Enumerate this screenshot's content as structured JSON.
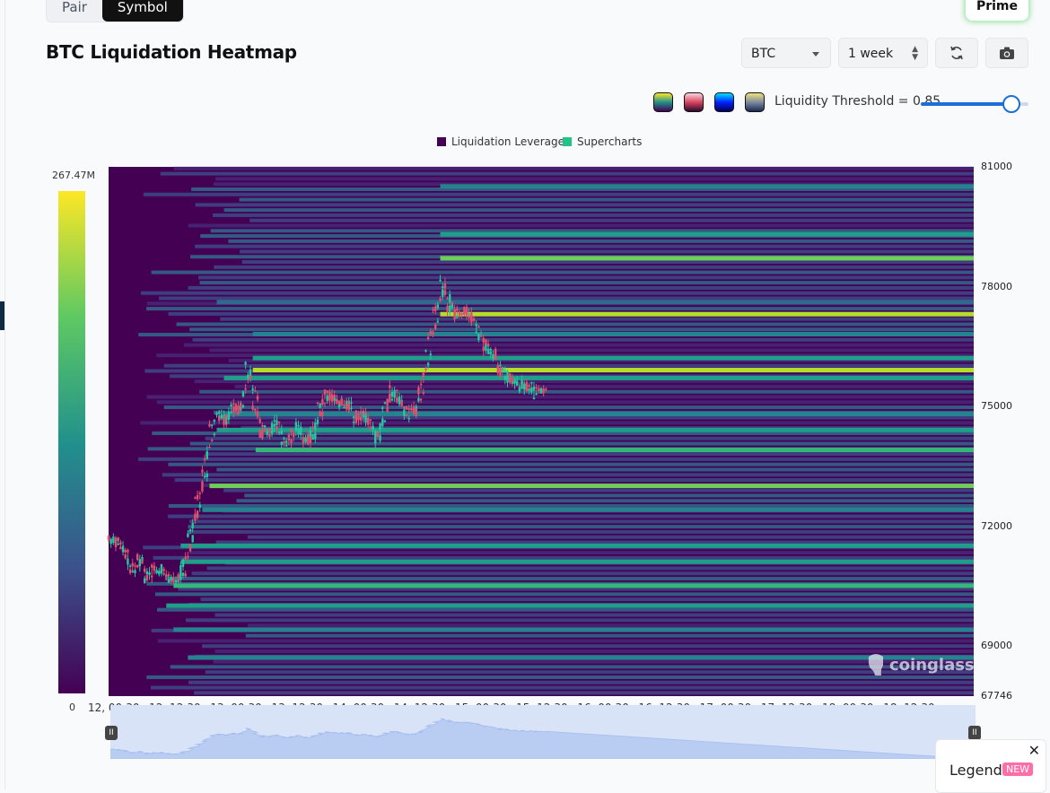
{
  "tabs": {
    "pair": "Pair",
    "symbol": "Symbol"
  },
  "prime_label": "Prime",
  "title": "BTC Liquidation Heatmap",
  "controls": {
    "coin": "BTC",
    "range": "1 week",
    "refresh_icon": "refresh-icon",
    "camera_icon": "camera-icon"
  },
  "palettes": [
    "viridis",
    "magma",
    "jet",
    "cividis"
  ],
  "threshold": {
    "label": "Liquidity Threshold = 0.85",
    "value": 0.85
  },
  "colorbar": {
    "max_label": "267.47M",
    "min_label": "0"
  },
  "watermark": "coinglass",
  "legend_button": {
    "label": "Legend",
    "badge": "NEW"
  },
  "chart_data": {
    "type": "heatmap",
    "legend": [
      {
        "name": "Liquidation Leverage",
        "color": "#440154"
      },
      {
        "name": "Supercharts",
        "color": "#22c387"
      }
    ],
    "x_ticks": [
      "12, 00:30",
      "12, 12:30",
      "13, 00:30",
      "13, 12:30",
      "14, 00:30",
      "14, 12:30",
      "15, 00:30",
      "15, 12:30",
      "16, 00:30",
      "16, 12:30",
      "17, 00:30",
      "17, 12:30",
      "18, 00:30",
      "18, 12:30"
    ],
    "y_ticks": [
      81000,
      78000,
      75000,
      72000,
      69000,
      67746
    ],
    "ylim": [
      67746,
      81000
    ],
    "colorscale": {
      "min": 0,
      "max": 267.47,
      "unit": "M",
      "palette": "viridis"
    },
    "price_path": [
      [
        0,
        71650
      ],
      [
        0.5,
        71600
      ],
      [
        1,
        71300
      ],
      [
        1.5,
        70800
      ],
      [
        2,
        71200
      ],
      [
        2.5,
        70700
      ],
      [
        3,
        71000
      ],
      [
        3.5,
        70900
      ],
      [
        4,
        70700
      ],
      [
        4.5,
        70600
      ],
      [
        5,
        70900
      ],
      [
        5.5,
        71800
      ],
      [
        6,
        72600
      ],
      [
        6.5,
        73400
      ],
      [
        7,
        74600
      ],
      [
        7.5,
        74800
      ],
      [
        8,
        74600
      ],
      [
        8.5,
        75100
      ],
      [
        9,
        74900
      ],
      [
        9.5,
        76000
      ],
      [
        10,
        75000
      ],
      [
        10.5,
        74300
      ],
      [
        11,
        74400
      ],
      [
        11.5,
        74600
      ],
      [
        12,
        74000
      ],
      [
        12.5,
        74300
      ],
      [
        13,
        74500
      ],
      [
        13.5,
        74100
      ],
      [
        14,
        74300
      ],
      [
        14.5,
        75000
      ],
      [
        15,
        75300
      ],
      [
        15.5,
        75200
      ],
      [
        16,
        75100
      ],
      [
        16.5,
        75000
      ],
      [
        17,
        74700
      ],
      [
        17.5,
        74800
      ],
      [
        18,
        74500
      ],
      [
        18.5,
        74200
      ],
      [
        19,
        75000
      ],
      [
        19.5,
        75400
      ],
      [
        20,
        75200
      ],
      [
        20.5,
        74800
      ],
      [
        21,
        74900
      ],
      [
        21.5,
        75400
      ],
      [
        22,
        76500
      ],
      [
        22.5,
        77300
      ],
      [
        23,
        78100
      ],
      [
        23.5,
        77500
      ],
      [
        24,
        77300
      ],
      [
        24.5,
        77400
      ],
      [
        25,
        77200
      ],
      [
        25.5,
        76800
      ],
      [
        26,
        76500
      ],
      [
        26.5,
        76300
      ],
      [
        27,
        75900
      ],
      [
        27.5,
        75700
      ],
      [
        28,
        75600
      ],
      [
        28.5,
        75500
      ],
      [
        29,
        75500
      ],
      [
        29.5,
        75300
      ],
      [
        30,
        75500
      ]
    ],
    "levels": [
      {
        "price": 73000,
        "intensity": 0.78,
        "x_start": 7.0
      },
      {
        "price": 73900,
        "intensity": 0.65,
        "x_start": 10.2
      },
      {
        "price": 74400,
        "intensity": 0.55,
        "x_start": 7.5
      },
      {
        "price": 75900,
        "intensity": 0.88,
        "x_start": 10.0
      },
      {
        "price": 76200,
        "intensity": 0.6,
        "x_start": 10.0
      },
      {
        "price": 76800,
        "intensity": 0.4,
        "x_start": 10.0
      },
      {
        "price": 77300,
        "intensity": 0.92,
        "x_start": 23.0
      },
      {
        "price": 78700,
        "intensity": 0.8,
        "x_start": 23.0
      },
      {
        "price": 79300,
        "intensity": 0.55,
        "x_start": 23.0
      },
      {
        "price": 80500,
        "intensity": 0.45,
        "x_start": 23.0
      },
      {
        "price": 72400,
        "intensity": 0.45,
        "x_start": 6.5
      },
      {
        "price": 71500,
        "intensity": 0.5,
        "x_start": 5.0
      },
      {
        "price": 71100,
        "intensity": 0.58,
        "x_start": 5.0
      },
      {
        "price": 70500,
        "intensity": 0.62,
        "x_start": 4.5
      },
      {
        "price": 70000,
        "intensity": 0.55,
        "x_start": 4.0
      },
      {
        "price": 69400,
        "intensity": 0.48,
        "x_start": 4.5
      },
      {
        "price": 68700,
        "intensity": 0.4,
        "x_start": 5.5
      },
      {
        "price": 75700,
        "intensity": 0.5,
        "x_start": 8.0
      },
      {
        "price": 74800,
        "intensity": 0.48,
        "x_start": 8.0
      },
      {
        "price": 77600,
        "intensity": 0.32,
        "x_start": 7.5
      }
    ]
  }
}
